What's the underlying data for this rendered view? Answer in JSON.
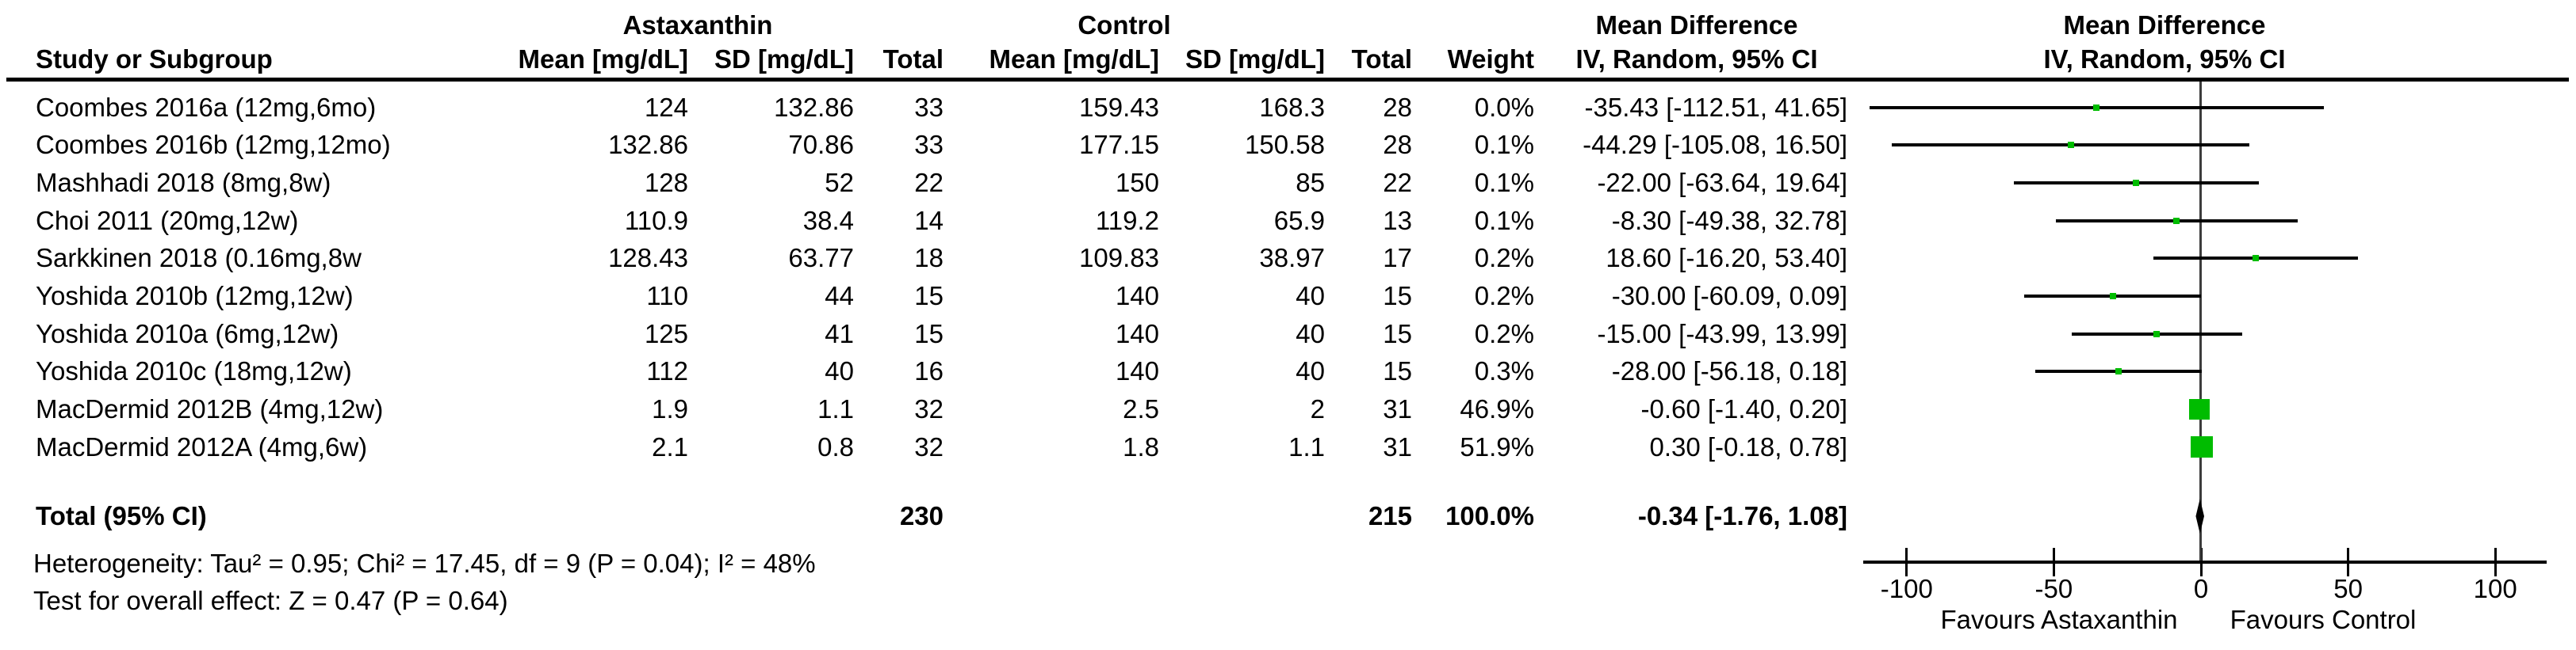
{
  "header": {
    "group1": "Astaxanthin",
    "group2": "Control",
    "md_table_title": "Mean Difference",
    "md_plot_title": "Mean Difference",
    "columns": {
      "study": "Study or Subgroup",
      "mean1": "Mean [mg/dL]",
      "sd1": "SD [mg/dL]",
      "total1": "Total",
      "mean2": "Mean [mg/dL]",
      "sd2": "SD [mg/dL]",
      "total2": "Total",
      "weight": "Weight",
      "ci_table": "IV, Random, 95% CI",
      "ci_plot": "IV, Random, 95% CI"
    }
  },
  "rows": [
    {
      "study": "Coombes 2016a (12mg,6mo)",
      "mean1": "124",
      "sd1": "132.86",
      "total1": "33",
      "mean2": "159.43",
      "sd2": "168.3",
      "total2": "28",
      "weight": "0.0%",
      "ci_text": "-35.43 [-112.51, 41.65]"
    },
    {
      "study": "Coombes 2016b (12mg,12mo)",
      "mean1": "132.86",
      "sd1": "70.86",
      "total1": "33",
      "mean2": "177.15",
      "sd2": "150.58",
      "total2": "28",
      "weight": "0.1%",
      "ci_text": "-44.29 [-105.08, 16.50]"
    },
    {
      "study": "Mashhadi 2018 (8mg,8w)",
      "mean1": "128",
      "sd1": "52",
      "total1": "22",
      "mean2": "150",
      "sd2": "85",
      "total2": "22",
      "weight": "0.1%",
      "ci_text": "-22.00 [-63.64, 19.64]"
    },
    {
      "study": "Choi 2011 (20mg,12w)",
      "mean1": "110.9",
      "sd1": "38.4",
      "total1": "14",
      "mean2": "119.2",
      "sd2": "65.9",
      "total2": "13",
      "weight": "0.1%",
      "ci_text": "-8.30 [-49.38, 32.78]"
    },
    {
      "study": "Sarkkinen 2018 (0.16mg,8w",
      "mean1": "128.43",
      "sd1": "63.77",
      "total1": "18",
      "mean2": "109.83",
      "sd2": "38.97",
      "total2": "17",
      "weight": "0.2%",
      "ci_text": "18.60 [-16.20, 53.40]"
    },
    {
      "study": "Yoshida 2010b (12mg,12w)",
      "mean1": "110",
      "sd1": "44",
      "total1": "15",
      "mean2": "140",
      "sd2": "40",
      "total2": "15",
      "weight": "0.2%",
      "ci_text": "-30.00 [-60.09, 0.09]"
    },
    {
      "study": "Yoshida 2010a (6mg,12w)",
      "mean1": "125",
      "sd1": "41",
      "total1": "15",
      "mean2": "140",
      "sd2": "40",
      "total2": "15",
      "weight": "0.2%",
      "ci_text": "-15.00 [-43.99, 13.99]"
    },
    {
      "study": "Yoshida 2010c (18mg,12w)",
      "mean1": "112",
      "sd1": "40",
      "total1": "16",
      "mean2": "140",
      "sd2": "40",
      "total2": "15",
      "weight": "0.3%",
      "ci_text": "-28.00 [-56.18, 0.18]"
    },
    {
      "study": "MacDermid 2012B (4mg,12w)",
      "mean1": "1.9",
      "sd1": "1.1",
      "total1": "32",
      "mean2": "2.5",
      "sd2": "2",
      "total2": "31",
      "weight": "46.9%",
      "ci_text": "-0.60 [-1.40, 0.20]"
    },
    {
      "study": "MacDermid 2012A (4mg,6w)",
      "mean1": "2.1",
      "sd1": "0.8",
      "total1": "32",
      "mean2": "1.8",
      "sd2": "1.1",
      "total2": "31",
      "weight": "51.9%",
      "ci_text": "0.30 [-0.18, 0.78]"
    }
  ],
  "total_row": {
    "label": "Total (95% CI)",
    "total1": "230",
    "total2": "215",
    "weight": "100.0%",
    "ci_text": "-0.34 [-1.76, 1.08]"
  },
  "footer": {
    "heterogeneity": "Heterogeneity: Tau² = 0.95; Chi² = 17.45, df = 9 (P = 0.04); I² = 48%",
    "overall_effect": "Test for overall effect: Z = 0.47 (P = 0.64)"
  },
  "axis": {
    "tick_labels": [
      "-100",
      "-50",
      "0",
      "50",
      "100"
    ],
    "favours_left": "Favours Astaxanthin",
    "favours_right": "Favours Control"
  },
  "colors": {
    "marker_green": "#00BC00",
    "ci_black": "#000000",
    "zero_line_gray": "#3c3c3c"
  },
  "chart_data": {
    "type": "scatter",
    "subtype": "forest_plot",
    "effect_measure": "Mean Difference IV, Random, 95% CI",
    "x_axis": {
      "ticks": [
        -100,
        -50,
        0,
        50,
        100
      ],
      "min": -100,
      "max": 100,
      "label_left": "Favours Astaxanthin",
      "label_right": "Favours Control"
    },
    "studies": [
      {
        "name": "Coombes 2016a (12mg,6mo)",
        "md": -35.43,
        "ci_low": -112.51,
        "ci_high": 41.65,
        "weight_pct": 0.0
      },
      {
        "name": "Coombes 2016b (12mg,12mo)",
        "md": -44.29,
        "ci_low": -105.08,
        "ci_high": 16.5,
        "weight_pct": 0.1
      },
      {
        "name": "Mashhadi 2018 (8mg,8w)",
        "md": -22.0,
        "ci_low": -63.64,
        "ci_high": 19.64,
        "weight_pct": 0.1
      },
      {
        "name": "Choi 2011 (20mg,12w)",
        "md": -8.3,
        "ci_low": -49.38,
        "ci_high": 32.78,
        "weight_pct": 0.1
      },
      {
        "name": "Sarkkinen 2018 (0.16mg,8w",
        "md": 18.6,
        "ci_low": -16.2,
        "ci_high": 53.4,
        "weight_pct": 0.2
      },
      {
        "name": "Yoshida 2010b (12mg,12w)",
        "md": -30.0,
        "ci_low": -60.09,
        "ci_high": 0.09,
        "weight_pct": 0.2
      },
      {
        "name": "Yoshida 2010a (6mg,12w)",
        "md": -15.0,
        "ci_low": -43.99,
        "ci_high": 13.99,
        "weight_pct": 0.2
      },
      {
        "name": "Yoshida 2010c (18mg,12w)",
        "md": -28.0,
        "ci_low": -56.18,
        "ci_high": 0.18,
        "weight_pct": 0.3
      },
      {
        "name": "MacDermid 2012B (4mg,12w)",
        "md": -0.6,
        "ci_low": -1.4,
        "ci_high": 0.2,
        "weight_pct": 46.9
      },
      {
        "name": "MacDermid 2012A (4mg,6w)",
        "md": 0.3,
        "ci_low": -0.18,
        "ci_high": 0.78,
        "weight_pct": 51.9
      }
    ],
    "total": {
      "label": "Total (95% CI)",
      "n_treatment": 230,
      "n_control": 215,
      "weight_pct": 100.0,
      "md": -0.34,
      "ci_low": -1.76,
      "ci_high": 1.08
    },
    "heterogeneity": {
      "tau2": 0.95,
      "chi2": 17.45,
      "df": 9,
      "p": 0.04,
      "i2_pct": 48
    },
    "overall_effect": {
      "z": 0.47,
      "p": 0.64
    }
  }
}
